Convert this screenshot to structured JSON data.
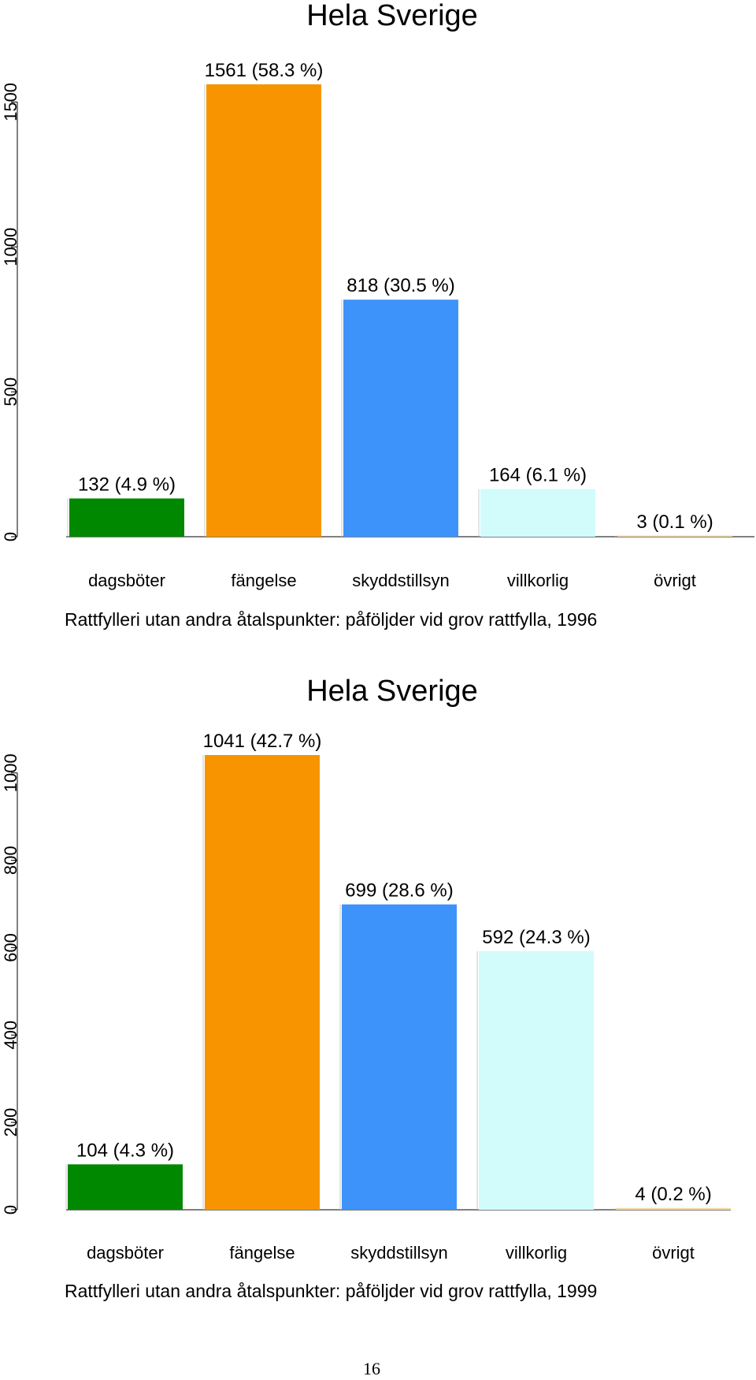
{
  "chart_data": [
    {
      "type": "bar",
      "title": "Hela Sverige",
      "xlabel": "Rattfylleri utan andra åtalspunkter: påföljder vid grov rattfylla, 1996",
      "categories": [
        "dagsböter",
        "fängelse",
        "skyddstillsyn",
        "villkorlig",
        "övrigt"
      ],
      "values": [
        132,
        1561,
        818,
        164,
        3
      ],
      "data_labels": [
        "132 (4.9 %)",
        "1561 (58.3 %)",
        "818 (30.5 %)",
        "164 (6.1 %)",
        "3 (0.1 %)"
      ],
      "colors": [
        "#008800",
        "#f79400",
        "#3d93fa",
        "#d2fbfc",
        "#f5d8a0"
      ],
      "yticks": [
        0,
        500,
        1000,
        1500
      ],
      "ylim": [
        0,
        1561
      ],
      "grid": false
    },
    {
      "type": "bar",
      "title": "Hela Sverige",
      "xlabel": "Rattfylleri utan andra åtalspunkter: påföljder vid grov rattfylla, 1999",
      "categories": [
        "dagsböter",
        "fängelse",
        "skyddstillsyn",
        "villkorlig",
        "övrigt"
      ],
      "values": [
        104,
        1041,
        699,
        592,
        4
      ],
      "data_labels": [
        "104 (4.3 %)",
        "1041 (42.7 %)",
        "699 (28.6 %)",
        "592 (24.3 %)",
        "4 (0.2 %)"
      ],
      "colors": [
        "#008800",
        "#f79400",
        "#3d93fa",
        "#d2fbfc",
        "#f5d8a0"
      ],
      "yticks": [
        0,
        200,
        400,
        600,
        800,
        1000
      ],
      "ylim": [
        0,
        1041
      ],
      "grid": false
    }
  ],
  "page": {
    "number": "16"
  }
}
